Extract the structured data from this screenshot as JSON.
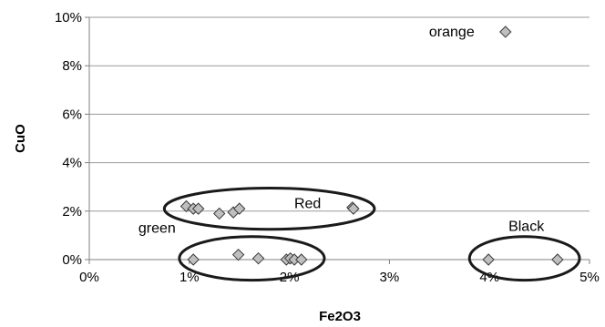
{
  "chart_data": {
    "type": "scatter",
    "title": "",
    "xlabel": "Fe2O3",
    "ylabel": "CuO",
    "xlim": [
      0,
      5
    ],
    "ylim": [
      0,
      10
    ],
    "x_ticks": [
      0,
      1,
      2,
      3,
      4,
      5
    ],
    "y_ticks": [
      0,
      2,
      4,
      6,
      8,
      10
    ],
    "x_tick_labels": [
      "0%",
      "1%",
      "2%",
      "3%",
      "4%",
      "5%"
    ],
    "y_tick_labels": [
      "0%",
      "2%",
      "4%",
      "6%",
      "8%",
      "10%"
    ],
    "grid": "horizontal",
    "legend": "none",
    "marker": "diamond",
    "marker_color": "#BFBFBF",
    "points": [
      {
        "x": 0.97,
        "y": 2.2
      },
      {
        "x": 1.04,
        "y": 2.1
      },
      {
        "x": 1.09,
        "y": 2.1
      },
      {
        "x": 1.3,
        "y": 1.9
      },
      {
        "x": 1.44,
        "y": 1.95
      },
      {
        "x": 1.5,
        "y": 2.1
      },
      {
        "x": 2.63,
        "y": 2.15
      },
      {
        "x": 2.64,
        "y": 2.1
      },
      {
        "x": 1.04,
        "y": 0.0
      },
      {
        "x": 1.49,
        "y": 0.2
      },
      {
        "x": 1.69,
        "y": 0.05
      },
      {
        "x": 1.97,
        "y": 0.0
      },
      {
        "x": 2.01,
        "y": 0.05
      },
      {
        "x": 2.05,
        "y": 0.0
      },
      {
        "x": 2.12,
        "y": 0.0
      },
      {
        "x": 3.99,
        "y": 0.0
      },
      {
        "x": 4.68,
        "y": 0.0
      },
      {
        "x": 4.16,
        "y": 9.4
      }
    ],
    "groups": [
      {
        "label": "Red",
        "x_range": [
          0.75,
          2.85
        ],
        "y_range": [
          1.25,
          2.95
        ]
      },
      {
        "label": "green",
        "x_range": [
          0.9,
          2.35
        ],
        "y_range": [
          -0.85,
          0.95
        ]
      },
      {
        "label": "Black",
        "x_range": [
          3.8,
          4.9
        ],
        "y_range": [
          -0.85,
          0.95
        ]
      }
    ],
    "annotations": [
      {
        "text": "orange",
        "x": 3.85,
        "y": 9.4
      }
    ]
  }
}
